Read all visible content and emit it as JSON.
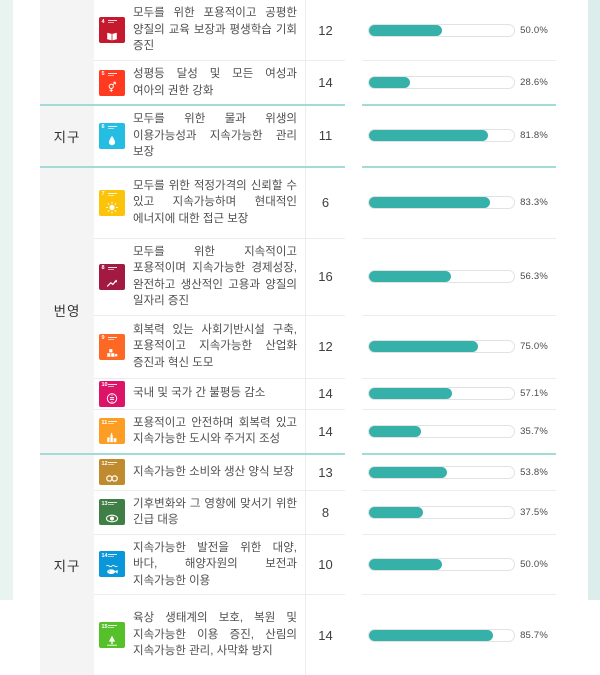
{
  "page": {
    "background": "#ffffff",
    "left_strip_color": "#e9f3f0",
    "right_strip_color": "#dcedeb",
    "bar_color": "#36b1aa",
    "section_divider_color": "#a3dbd7"
  },
  "table": {
    "sections": [
      {
        "category_label": "",
        "rows": [
          {
            "goal": 4,
            "icon": "sdg-4-quality-education-icon",
            "color": "#C5192D",
            "text": "모두를 위한 포용적이고 공평한 양질의 교육 보장과 평생학습 기회 증진",
            "count": "12",
            "percent_label": "50.0%",
            "percent_value": 50.0
          },
          {
            "goal": 5,
            "icon": "sdg-5-gender-equality-icon",
            "color": "#FF3A21",
            "text": "성평등 달성 및 모든 여성과 여아의 권한 강화",
            "count": "14",
            "percent_label": "28.6%",
            "percent_value": 28.6
          }
        ]
      },
      {
        "category_label": "지구",
        "rows": [
          {
            "goal": 6,
            "icon": "sdg-6-clean-water-sanitation-icon",
            "color": "#26BDE2",
            "text": "모두를 위한 물과 위생의 이용가능성과 지속가능한 관리 보장",
            "count": "11",
            "percent_label": "81.8%",
            "percent_value": 81.8
          }
        ]
      },
      {
        "category_label": "번영",
        "rows": [
          {
            "goal": 7,
            "icon": "sdg-7-affordable-clean-energy-icon",
            "color": "#FCC30B",
            "text": "모두를 위한 적정가격의 신뢰할 수 있고 지속가능하며 현대적인 에너지에 대한 접근 보장",
            "count": "6",
            "percent_label": "83.3%",
            "percent_value": 83.3
          },
          {
            "goal": 8,
            "icon": "sdg-8-decent-work-growth-icon",
            "color": "#A21942",
            "text": "모두를 위한 지속적이고 포용적이며 지속가능한 경제성장, 완전하고 생산적인 고용과 양질의 일자리 증진",
            "count": "16",
            "percent_label": "56.3%",
            "percent_value": 56.3
          },
          {
            "goal": 9,
            "icon": "sdg-9-industry-innovation-icon",
            "color": "#FD6925",
            "text": "회복력 있는 사회기반시설 구축, 포용적이고 지속가능한 산업화 증진과 혁신 도모",
            "count": "12",
            "percent_label": "75.0%",
            "percent_value": 75.0
          },
          {
            "goal": 10,
            "icon": "sdg-10-reduced-inequalities-icon",
            "color": "#DD1367",
            "text": "국내 및 국가 간 불평등 감소",
            "count": "14",
            "percent_label": "57.1%",
            "percent_value": 57.1
          },
          {
            "goal": 11,
            "icon": "sdg-11-sustainable-cities-icon",
            "color": "#FD9D24",
            "text": "포용적이고 안전하며 회복력 있고 지속가능한 도시와 주거지 조성",
            "count": "14",
            "percent_label": "35.7%",
            "percent_value": 35.7
          }
        ]
      },
      {
        "category_label": "지구",
        "rows": [
          {
            "goal": 12,
            "icon": "sdg-12-responsible-consumption-icon",
            "color": "#BF8B2E",
            "text": "지속가능한 소비와 생산 양식 보장",
            "count": "13",
            "percent_label": "53.8%",
            "percent_value": 53.8
          },
          {
            "goal": 13,
            "icon": "sdg-13-climate-action-icon",
            "color": "#3F7E44",
            "text": "기후변화와 그 영향에 맞서기 위한 긴급 대응",
            "count": "8",
            "percent_label": "37.5%",
            "percent_value": 37.5
          },
          {
            "goal": 14,
            "icon": "sdg-14-life-below-water-icon",
            "color": "#0A97D9",
            "text": "지속가능한 발전을 위한 대양, 바다, 해양자원의 보전과 지속가능한 이용",
            "count": "10",
            "percent_label": "50.0%",
            "percent_value": 50.0
          },
          {
            "goal": 15,
            "icon": "sdg-15-life-on-land-icon",
            "color": "#56C02B",
            "text": "육상 생태계의 보호, 복원 및 지속가능한 이용 증진, 산림의 지속가능한 관리, 사막화 방지",
            "count": "14",
            "percent_label": "85.7%",
            "percent_value": 85.7
          }
        ]
      }
    ]
  },
  "chart_data": {
    "type": "bar",
    "orientation": "horizontal",
    "title": "",
    "groups": [
      "",
      "지구",
      "번영",
      "지구"
    ],
    "categories": [
      "모두를 위한 포용적이고 공평한 양질의 교육 보장과 평생학습 기회 증진",
      "성평등 달성 및 모든 여성과 여아의 권한 강화",
      "모두를 위한 물과 위생의 이용가능성과 지속가능한 관리 보장",
      "모두를 위한 적정가격의 신뢰할 수 있고 지속가능하며 현대적인 에너지에 대한 접근 보장",
      "모두를 위한 지속적이고 포용적이며 지속가능한 경제성장, 완전하고 생산적인 고용과 양질의 일자리 증진",
      "회복력 있는 사회기반시설 구축, 포용적이고 지속가능한 산업화 증진과 혁신 도모",
      "국내 및 국가 간 불평등 감소",
      "포용적이고 안전하며 회복력 있고 지속가능한 도시와 주거지 조성",
      "지속가능한 소비와 생산 양식 보장",
      "기후변화와 그 영향에 맞서기 위한 긴급 대응",
      "지속가능한 발전을 위한 대양, 바다, 해양자원의 보전과 지속가능한 이용",
      "육상 생태계의 보호, 복원 및 지속가능한 이용 증진, 산림의 지속가능한 관리, 사막화 방지"
    ],
    "sdg_goal_numbers": [
      4,
      5,
      6,
      7,
      8,
      9,
      10,
      11,
      12,
      13,
      14,
      15
    ],
    "series": [
      {
        "name": "count",
        "values": [
          12,
          14,
          11,
          6,
          16,
          12,
          14,
          14,
          13,
          8,
          10,
          14
        ]
      },
      {
        "name": "percent",
        "values": [
          50.0,
          28.6,
          81.8,
          83.3,
          56.3,
          75.0,
          57.1,
          35.7,
          53.8,
          37.5,
          50.0,
          85.7
        ]
      }
    ],
    "value_labels": [
      "50.0%",
      "28.6%",
      "81.8%",
      "83.3%",
      "56.3%",
      "75.0%",
      "57.1%",
      "35.7%",
      "53.8%",
      "37.5%",
      "50.0%",
      "85.7%"
    ],
    "xlim": [
      0,
      100
    ],
    "grid": false,
    "legend": false,
    "bar_color": "#36b1aa"
  }
}
